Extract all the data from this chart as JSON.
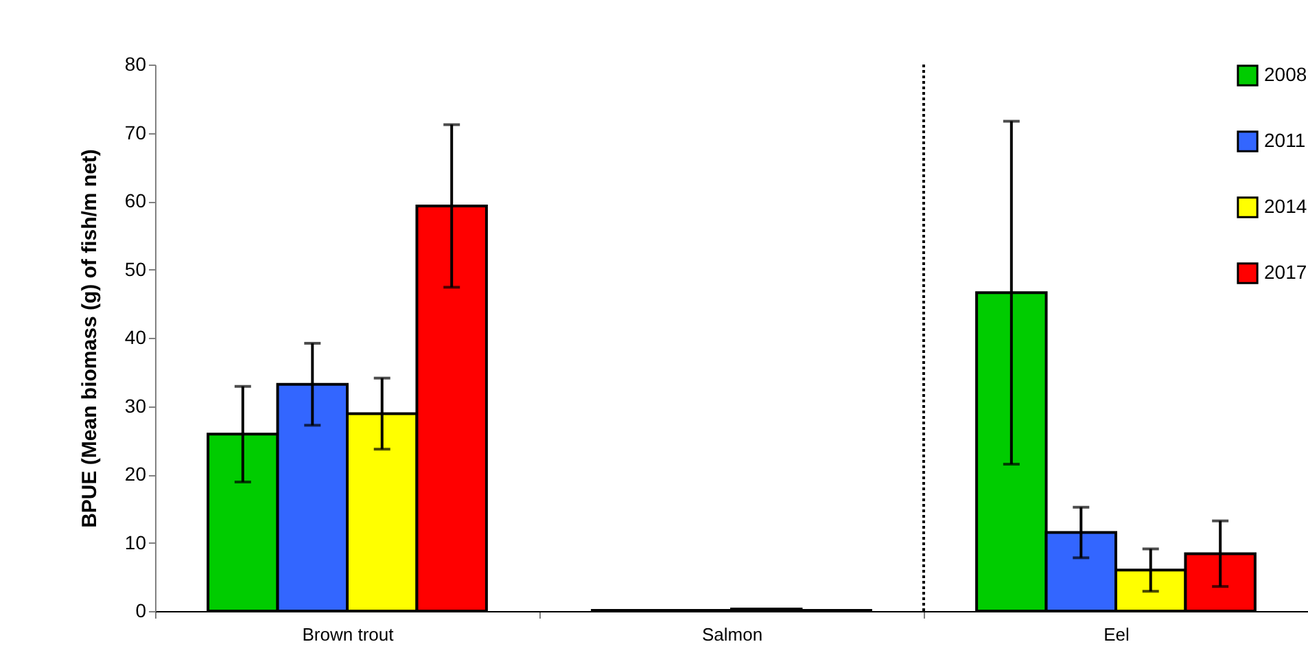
{
  "chart_data": {
    "type": "bar",
    "ylabel": "BPUE (Mean biomass (g) of  fish/m net)",
    "categories": [
      "Brown trout",
      "Salmon",
      "Eel"
    ],
    "series": [
      {
        "name": "2008",
        "color": "#00cc00",
        "values": [
          25.9,
          0.1,
          46.6
        ],
        "errors": [
          7.0,
          null,
          25.1
        ]
      },
      {
        "name": "2011",
        "color": "#3366ff",
        "values": [
          33.2,
          0.1,
          11.5
        ],
        "errors": [
          6.0,
          null,
          3.7
        ]
      },
      {
        "name": "2014",
        "color": "#ffff00",
        "values": [
          28.9,
          0.3,
          6.0
        ],
        "errors": [
          5.2,
          null,
          3.1
        ]
      },
      {
        "name": "2017",
        "color": "#ff0000",
        "values": [
          59.3,
          0.1,
          8.4
        ],
        "errors": [
          11.9,
          null,
          4.8
        ]
      }
    ],
    "ylim": [
      0,
      80
    ],
    "yticks": [
      0,
      10,
      20,
      30,
      40,
      50,
      60,
      70,
      80
    ],
    "legend": "top right",
    "grid": false
  }
}
